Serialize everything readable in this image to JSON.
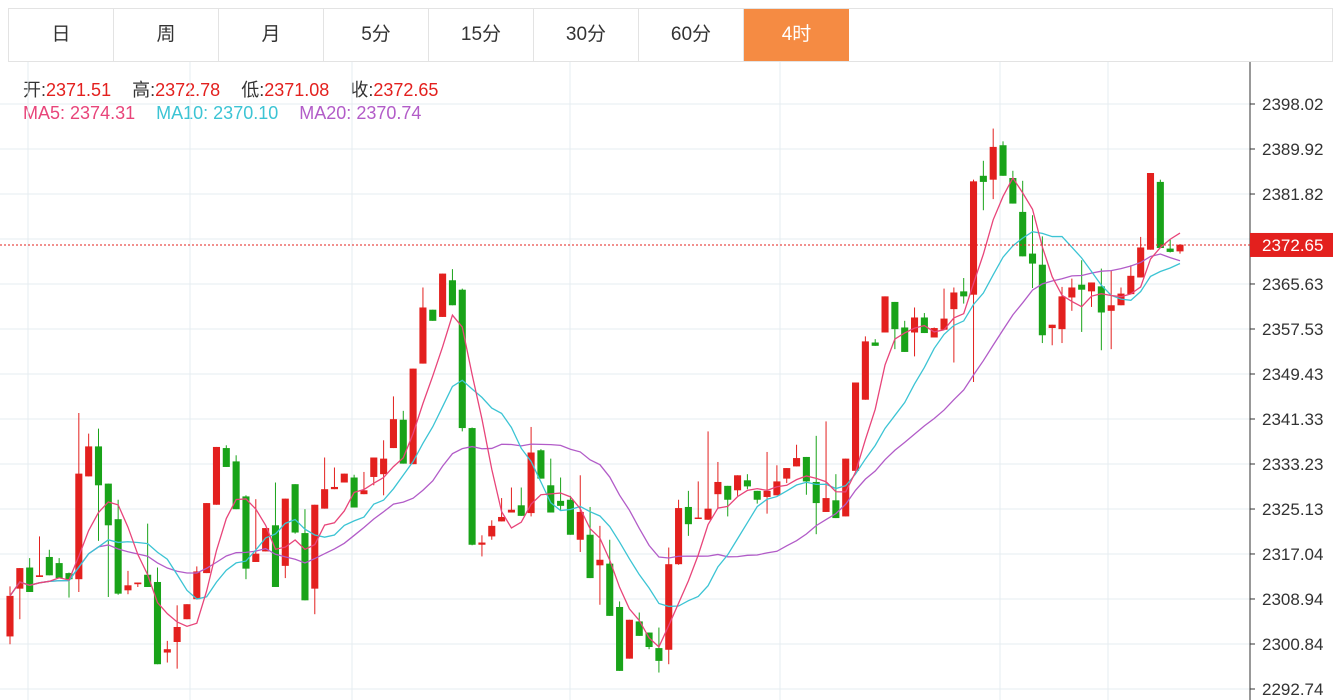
{
  "tabs": [
    {
      "label": "日",
      "active": false
    },
    {
      "label": "周",
      "active": false
    },
    {
      "label": "月",
      "active": false
    },
    {
      "label": "5分",
      "active": false
    },
    {
      "label": "15分",
      "active": false
    },
    {
      "label": "30分",
      "active": false
    },
    {
      "label": "60分",
      "active": false
    },
    {
      "label": "4时",
      "active": true
    }
  ],
  "ohlc": {
    "open_label": "开:",
    "open": "2371.51",
    "high_label": "高:",
    "high": "2372.78",
    "low_label": "低:",
    "low": "2371.08",
    "close_label": "收:",
    "close": "2372.65"
  },
  "ma": {
    "ma5_label": "MA5:",
    "ma5": "2374.31",
    "ma10_label": "MA10:",
    "ma10": "2370.10",
    "ma20_label": "MA20:",
    "ma20": "2370.74"
  },
  "colors": {
    "up": "#e3201e",
    "down": "#19a319",
    "ma5": "#e8457a",
    "ma10": "#3cc4d4",
    "ma20": "#b25cc8",
    "active_tab": "#f58b43",
    "grid": "#e6ecf0"
  },
  "chart_data": {
    "type": "candlestick",
    "y_ticks": [
      "2398.02",
      "2389.92",
      "2381.82",
      "2373.72",
      "2365.63",
      "2357.53",
      "2349.43",
      "2341.33",
      "2333.23",
      "2325.13",
      "2317.04",
      "2308.94",
      "2300.84",
      "2292.74"
    ],
    "ylim": [
      2292.74,
      2398.02
    ],
    "last_price": "2372.65",
    "candles": [
      [
        2302.2,
        2311.2,
        2300.8,
        2309.5
      ],
      [
        2310.8,
        2313.3,
        2305.3,
        2314.5
      ],
      [
        2314.6,
        2316.3,
        2312.1,
        2310.2
      ],
      [
        2312.9,
        2320.2,
        2316.1,
        2313.2
      ],
      [
        2316.5,
        2317.8,
        2313.2,
        2313.2
      ],
      [
        2315.4,
        2316.3,
        2313.9,
        2312.7
      ],
      [
        2313.6,
        2313.7,
        2309.2,
        2312.5
      ],
      [
        2312.5,
        2342.4,
        2310.2,
        2331.5
      ],
      [
        2331.0,
        2338.7,
        2331.8,
        2336.4
      ],
      [
        2336.4,
        2339.6,
        2319.4,
        2329.4
      ],
      [
        2329.7,
        2329.1,
        2309.3,
        2322.2
      ],
      [
        2323.3,
        2326.8,
        2309.7,
        2309.9
      ],
      [
        2310.5,
        2314.0,
        2309.8,
        2311.4
      ],
      [
        2311.6,
        2311.8,
        2311.1,
        2311.9
      ],
      [
        2313.3,
        2322.5,
        2311.4,
        2311.1
      ],
      [
        2312.0,
        2314.6,
        2297.2,
        2297.2
      ],
      [
        2299.3,
        2301.4,
        2297.5,
        2299.9
      ],
      [
        2301.2,
        2307.8,
        2296.4,
        2303.9
      ],
      [
        2305.3,
        2304.9,
        2308.2,
        2308.0
      ],
      [
        2308.9,
        2314.8,
        2311.2,
        2313.9
      ],
      [
        2313.6,
        2323.1,
        2321.7,
        2326.2
      ],
      [
        2325.9,
        2332.6,
        2334.1,
        2336.3
      ],
      [
        2336.1,
        2336.6,
        2334.7,
        2332.7
      ],
      [
        2333.7,
        2334.8,
        2325.4,
        2325.1
      ],
      [
        2327.4,
        2327.6,
        2312.5,
        2314.4
      ],
      [
        2315.6,
        2326.9,
        2317.2,
        2317.1
      ],
      [
        2317.5,
        2320.9,
        2318.4,
        2321.7
      ],
      [
        2322.2,
        2329.9,
        2324.4,
        2311.1
      ],
      [
        2314.9,
        2320.0,
        2312.7,
        2327.0
      ],
      [
        2329.6,
        2322.6,
        2320.7,
        2320.9
      ],
      [
        2320.8,
        2325.1,
        2318.5,
        2308.7
      ],
      [
        2310.8,
        2325.4,
        2306.2,
        2325.9
      ],
      [
        2325.2,
        2334.4,
        2327.6,
        2328.7
      ],
      [
        2328.7,
        2332.6,
        2330.6,
        2329.1
      ],
      [
        2329.9,
        2331.3,
        2330.1,
        2331.5
      ],
      [
        2330.8,
        2331.3,
        2331.9,
        2325.4
      ],
      [
        2327.8,
        2331.8,
        2328.7,
        2328.5
      ],
      [
        2330.9,
        2331.8,
        2329.4,
        2334.4
      ],
      [
        2331.4,
        2337.5,
        2327.6,
        2334.2
      ],
      [
        2336.1,
        2345.4,
        2339.8,
        2341.3
      ],
      [
        2341.2,
        2342.8,
        2334.3,
        2333.3
      ],
      [
        2333.2,
        2349.4,
        2349.2,
        2350.4
      ],
      [
        2351.3,
        2365.0,
        2358.8,
        2361.4
      ],
      [
        2361.0,
        2360.8,
        2360.3,
        2359.0
      ],
      [
        2359.7,
        2366.3,
        2364.0,
        2367.5
      ],
      [
        2366.3,
        2368.3,
        2363.2,
        2361.8
      ],
      [
        2364.6,
        2364.8,
        2339.1,
        2339.7
      ],
      [
        2339.7,
        2339.8,
        2318.6,
        2318.7
      ],
      [
        2318.7,
        2320.4,
        2316.6,
        2319.1
      ],
      [
        2320.2,
        2323.1,
        2319.6,
        2322.1
      ],
      [
        2322.9,
        2327.1,
        2326.1,
        2323.7
      ],
      [
        2324.5,
        2329.0,
        2325.1,
        2325.0
      ],
      [
        2325.8,
        2329.0,
        2326.1,
        2323.9
      ],
      [
        2324.4,
        2339.9,
        2323.8,
        2335.3
      ],
      [
        2335.7,
        2335.9,
        2332.1,
        2330.6
      ],
      [
        2329.4,
        2334.2,
        2330.9,
        2324.5
      ],
      [
        2326.6,
        2330.8,
        2324.8,
        2325.7
      ],
      [
        2326.8,
        2327.5,
        2327.9,
        2320.5
      ],
      [
        2319.6,
        2331.2,
        2317.4,
        2324.6
      ],
      [
        2320.5,
        2325.5,
        2315.4,
        2312.7
      ],
      [
        2315.0,
        2322.1,
        2307.9,
        2316.0
      ],
      [
        2315.3,
        2319.6,
        2309.0,
        2305.9
      ],
      [
        2307.5,
        2308.5,
        2296.5,
        2296.0
      ],
      [
        2298.2,
        2302.9,
        2298.7,
        2305.2
      ],
      [
        2304.9,
        2306.5,
        2302.9,
        2302.3
      ],
      [
        2302.9,
        2300.4,
        2299.9,
        2300.3
      ],
      [
        2300.1,
        2303.8,
        2295.7,
        2297.8
      ],
      [
        2299.8,
        2318.2,
        2297.2,
        2315.2
      ],
      [
        2315.2,
        2326.8,
        2315.1,
        2325.3
      ],
      [
        2325.5,
        2328.4,
        2320.3,
        2322.4
      ],
      [
        2323.6,
        2330.1,
        2327.4,
        2323.6
      ],
      [
        2323.2,
        2339.1,
        2325.5,
        2325.2
      ],
      [
        2327.8,
        2333.6,
        2325.2,
        2330.0
      ],
      [
        2329.3,
        2328.8,
        2323.8,
        2326.8
      ],
      [
        2328.5,
        2329.9,
        2327.5,
        2331.2
      ],
      [
        2330.3,
        2331.4,
        2328.7,
        2329.2
      ],
      [
        2328.4,
        2327.0,
        2326.1,
        2326.8
      ],
      [
        2327.3,
        2335.4,
        2324.3,
        2328.4
      ],
      [
        2327.6,
        2333.0,
        2328.7,
        2330.1
      ],
      [
        2330.6,
        2332.5,
        2329.8,
        2332.5
      ],
      [
        2332.8,
        2336.7,
        2334.0,
        2334.3
      ],
      [
        2334.5,
        2334.4,
        2327.7,
        2330.1
      ],
      [
        2330.0,
        2338.3,
        2320.6,
        2326.2
      ],
      [
        2324.6,
        2340.9,
        2332.6,
        2327.1
      ],
      [
        2326.7,
        2331.4,
        2324.7,
        2323.5
      ],
      [
        2323.8,
        2334.1,
        2328.7,
        2334.2
      ],
      [
        2332.0,
        2336.3,
        2341.9,
        2347.9
      ],
      [
        2344.8,
        2356.2,
        2353.6,
        2355.3
      ],
      [
        2355.1,
        2355.7,
        2357.7,
        2354.5
      ],
      [
        2356.9,
        2362.8,
        2359.7,
        2363.4
      ],
      [
        2362.4,
        2360.6,
        2353.9,
        2357.5
      ],
      [
        2357.8,
        2359.0,
        2358.1,
        2353.4
      ],
      [
        2356.9,
        2361.4,
        2352.6,
        2359.6
      ],
      [
        2359.6,
        2360.4,
        2357.4,
        2356.8
      ],
      [
        2356.0,
        2357.8,
        2358.2,
        2357.7
      ],
      [
        2357.4,
        2364.8,
        2359.4,
        2359.4
      ],
      [
        2361.1,
        2365.0,
        2351.5,
        2364.1
      ],
      [
        2364.3,
        2366.7,
        2362.1,
        2363.4
      ],
      [
        2363.7,
        2384.4,
        2348.0,
        2384.1
      ],
      [
        2385.1,
        2387.8,
        2378.9,
        2384.0
      ],
      [
        2384.4,
        2393.6,
        2380.9,
        2390.3
      ],
      [
        2390.6,
        2391.3,
        2388.9,
        2385.1
      ],
      [
        2384.7,
        2386.0,
        2383.3,
        2380.1
      ],
      [
        2378.6,
        2384.2,
        2374.2,
        2370.6
      ],
      [
        2371.1,
        2378.0,
        2364.9,
        2369.3
      ],
      [
        2369.1,
        2374.2,
        2355.0,
        2356.4
      ],
      [
        2357.7,
        2358.3,
        2354.6,
        2358.3
      ],
      [
        2357.5,
        2365.1,
        2355.0,
        2363.4
      ],
      [
        2363.2,
        2366.6,
        2360.8,
        2365.0
      ],
      [
        2365.5,
        2369.9,
        2357.0,
        2364.6
      ],
      [
        2364.3,
        2363.7,
        2361.5,
        2365.9
      ],
      [
        2365.2,
        2368.4,
        2353.7,
        2360.5
      ],
      [
        2360.8,
        2368.0,
        2353.9,
        2361.8
      ],
      [
        2361.8,
        2365.0,
        2364.3,
        2363.9
      ],
      [
        2363.8,
        2369.0,
        2364.3,
        2367.1
      ],
      [
        2366.8,
        2374.1,
        2368.7,
        2372.2
      ],
      [
        2371.8,
        2385.6,
        2372.8,
        2385.6
      ],
      [
        2384.0,
        2384.4,
        2376.0,
        2372.1
      ],
      [
        2372.0,
        2373.7,
        2371.3,
        2371.4
      ],
      [
        2371.5,
        2372.8,
        2371.1,
        2372.7
      ]
    ]
  }
}
